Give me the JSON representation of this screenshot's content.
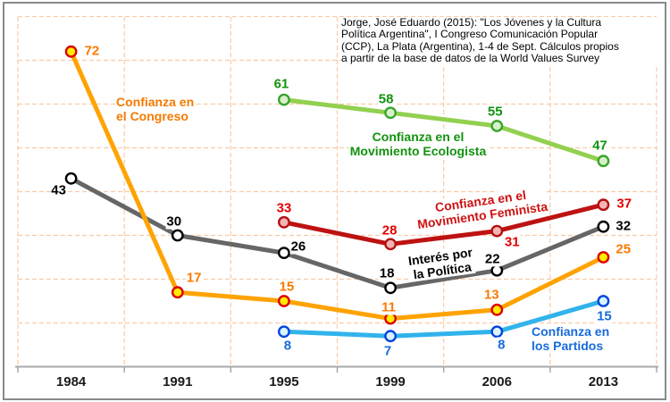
{
  "citation": {
    "text": "Jorge, José Eduardo (2015): \"Los Jóvenes y la Cultura\nPolítica Argentina\", I Congreso Comunicación Popular\n(CCP), La Plata (Argentina), 1-4 de Sept. Cálculos propios\na partir de la base de datos de la World Values Survey"
  },
  "chart_data": {
    "type": "line",
    "title": "",
    "x_categories": [
      "1984",
      "1991",
      "1995",
      "1999",
      "2006",
      "2013"
    ],
    "y_axis": {
      "min": 0,
      "max": 80,
      "gridline_step": 10,
      "tick_labels_visible": false
    },
    "grid": "dashed",
    "gridline_color": "#FACBA6",
    "axis_color": "#A8A8A8",
    "series": [
      {
        "key": "congreso",
        "name": "Confianza en el Congreso",
        "label_lines": [
          "Confianza en",
          "el Congreso"
        ],
        "values": [
          72,
          17,
          15,
          11,
          13,
          25
        ],
        "line_color": "#FFA302",
        "marker_fill": "#FFEC00",
        "marker_stroke": "#DB0000",
        "label_color": "#FB7900"
      },
      {
        "key": "interes",
        "name": "Interés por la Política",
        "label_lines": [
          "Interés por",
          "la Política"
        ],
        "values": [
          43,
          30,
          26,
          18,
          22,
          32
        ],
        "line_color": "#666666",
        "marker_fill": "#FFFFFF",
        "marker_stroke": "#000000",
        "label_color": "#000000"
      },
      {
        "key": "ecologista",
        "name": "Confianza en el Movimiento Ecologista",
        "label_lines": [
          "Confianza en el",
          "Movimiento Ecologista"
        ],
        "values": [
          null,
          null,
          61,
          58,
          55,
          47
        ],
        "line_color": "#92D050",
        "marker_fill": "#D9F1CB",
        "marker_stroke": "#3BA42C",
        "label_color": "#12930F"
      },
      {
        "key": "feminista",
        "name": "Confianza en el Movimiento Feminista",
        "label_lines": [
          "Confianza en el",
          "Movimiento Feminista"
        ],
        "values": [
          null,
          null,
          33,
          28,
          31,
          37
        ],
        "line_color": "#BE1212",
        "marker_fill": "#F2B4B4",
        "marker_stroke": "#B41010",
        "label_color": "#E30000"
      },
      {
        "key": "partidos",
        "name": "Confianza en los Partidos",
        "label_lines": [
          "Confianza en",
          "los Partidos"
        ],
        "values": [
          null,
          null,
          8,
          7,
          8,
          15
        ],
        "line_color": "#31B3EB",
        "marker_fill": "#D8F5FE",
        "marker_stroke": "#0345DE",
        "label_color": "#186BDC"
      }
    ]
  }
}
